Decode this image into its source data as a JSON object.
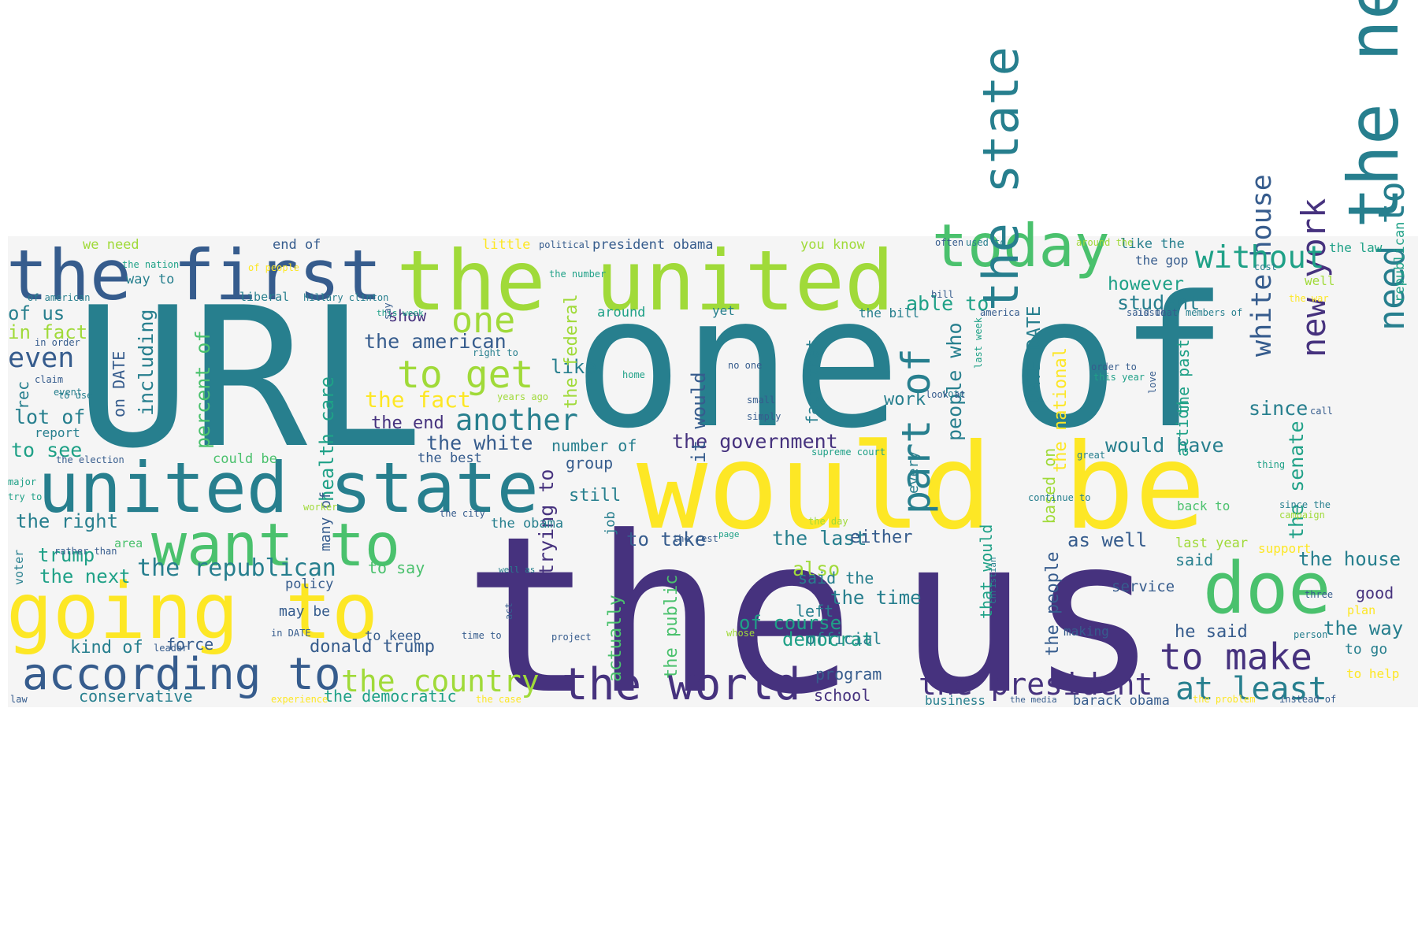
{
  "palette": [
    "#440154",
    "#46327e",
    "#365c8d",
    "#277f8e",
    "#1fa187",
    "#4ac16d",
    "#a0da39",
    "#fde725"
  ],
  "words": [
    {
      "text": "the",
      "c": 1
    },
    {
      "text": "us",
      "c": 1
    },
    {
      "text": "URL",
      "c": 3
    },
    {
      "text": "one of",
      "c": 3
    },
    {
      "text": "would be",
      "c": 7
    },
    {
      "text": "the united",
      "c": 6
    },
    {
      "text": "the first",
      "c": 2
    },
    {
      "text": "united state",
      "c": 3
    },
    {
      "text": "today",
      "c": 5
    },
    {
      "text": "the new",
      "c": 3
    },
    {
      "text": "going to",
      "c": 7
    },
    {
      "text": "want to",
      "c": 5
    },
    {
      "text": "doe",
      "c": 5
    },
    {
      "text": "according to",
      "c": 2
    },
    {
      "text": "the world",
      "c": 1
    },
    {
      "text": "the state",
      "c": 3
    },
    {
      "text": "part of",
      "c": 3
    },
    {
      "text": "to make",
      "c": 1
    },
    {
      "text": "the president",
      "c": 1
    },
    {
      "text": "at least",
      "c": 3
    },
    {
      "text": "new york",
      "c": 1
    },
    {
      "text": "white house",
      "c": 2
    },
    {
      "text": "need to",
      "c": 3
    },
    {
      "text": "the country",
      "c": 6
    },
    {
      "text": "to get",
      "c": 6
    },
    {
      "text": "another",
      "c": 3
    },
    {
      "text": "one",
      "c": 6
    },
    {
      "text": "without",
      "c": 4
    },
    {
      "text": "DATE DATE",
      "c": 3
    },
    {
      "text": "the republican",
      "c": 3
    },
    {
      "text": "the american",
      "c": 2
    },
    {
      "text": "the white",
      "c": 2
    },
    {
      "text": "the government",
      "c": 1
    },
    {
      "text": "the fact",
      "c": 7
    },
    {
      "text": "the end",
      "c": 1
    },
    {
      "text": "even",
      "c": 2
    },
    {
      "text": "of us",
      "c": 3
    },
    {
      "text": "in fact",
      "c": 6
    },
    {
      "text": "lot of",
      "c": 3
    },
    {
      "text": "to see",
      "c": 4
    },
    {
      "text": "the right",
      "c": 3
    },
    {
      "text": "trump",
      "c": 4
    },
    {
      "text": "the next",
      "c": 4
    },
    {
      "text": "kind of",
      "c": 3
    },
    {
      "text": "force",
      "c": 2
    },
    {
      "text": "donald trump",
      "c": 2
    },
    {
      "text": "conservative",
      "c": 3
    },
    {
      "text": "the democratic",
      "c": 4
    },
    {
      "text": "health care",
      "c": 4
    },
    {
      "text": "including",
      "c": 3
    },
    {
      "text": "on DATE",
      "c": 2
    },
    {
      "text": "percent of",
      "c": 5
    },
    {
      "text": "rec",
      "c": 3
    },
    {
      "text": "report",
      "c": 3
    },
    {
      "text": "like",
      "c": 3
    },
    {
      "text": "show",
      "c": 1
    },
    {
      "text": "around",
      "c": 4
    },
    {
      "text": "yet",
      "c": 3
    },
    {
      "text": "it would",
      "c": 2
    },
    {
      "text": "the federal",
      "c": 6
    },
    {
      "text": "number of",
      "c": 3
    },
    {
      "text": "group",
      "c": 2
    },
    {
      "text": "still",
      "c": 3
    },
    {
      "text": "job",
      "c": 3
    },
    {
      "text": "to take",
      "c": 2
    },
    {
      "text": "the last",
      "c": 3
    },
    {
      "text": "either",
      "c": 2
    },
    {
      "text": "trying to",
      "c": 1
    },
    {
      "text": "actually",
      "c": 5
    },
    {
      "text": "the public",
      "c": 5
    },
    {
      "text": "also",
      "c": 6
    },
    {
      "text": "said the",
      "c": 3
    },
    {
      "text": "the time",
      "c": 3
    },
    {
      "text": "of course",
      "c": 4
    },
    {
      "text": "democrat",
      "c": 4
    },
    {
      "text": "official",
      "c": 3
    },
    {
      "text": "left",
      "c": 3
    },
    {
      "text": "program",
      "c": 2
    },
    {
      "text": "school",
      "c": 1
    },
    {
      "text": "fact that",
      "c": 3
    },
    {
      "text": "work",
      "c": 3
    },
    {
      "text": "every",
      "c": 3
    },
    {
      "text": "people who",
      "c": 3
    },
    {
      "text": "that would",
      "c": 4
    },
    {
      "text": "the people",
      "c": 2
    },
    {
      "text": "based on",
      "c": 6
    },
    {
      "text": "the national",
      "c": 7
    },
    {
      "text": "able to",
      "c": 4
    },
    {
      "text": "student",
      "c": 3
    },
    {
      "text": "however",
      "c": 4
    },
    {
      "text": "would have",
      "c": 3
    },
    {
      "text": "as well",
      "c": 2
    },
    {
      "text": "the senate",
      "c": 4
    },
    {
      "text": "the past",
      "c": 4
    },
    {
      "text": "action",
      "c": 4
    },
    {
      "text": "since",
      "c": 3
    },
    {
      "text": "the house",
      "c": 3
    },
    {
      "text": "last year",
      "c": 6
    },
    {
      "text": "said",
      "c": 3
    },
    {
      "text": "service",
      "c": 2
    },
    {
      "text": "good",
      "c": 1
    },
    {
      "text": "he said",
      "c": 2
    },
    {
      "text": "the way",
      "c": 3
    },
    {
      "text": "to go",
      "c": 3
    },
    {
      "text": "making",
      "c": 2
    },
    {
      "text": "business",
      "c": 3
    },
    {
      "text": "barack obama",
      "c": 2
    },
    {
      "text": "the gop",
      "c": 2
    },
    {
      "text": "like the",
      "c": 3
    },
    {
      "text": "the law",
      "c": 4
    },
    {
      "text": "republican",
      "c": 4
    },
    {
      "text": "well",
      "c": 6
    },
    {
      "text": "back to",
      "c": 5
    },
    {
      "text": "support",
      "c": 7
    },
    {
      "text": "to help",
      "c": 7
    },
    {
      "text": "plan",
      "c": 7
    },
    {
      "text": "the bill",
      "c": 3
    },
    {
      "text": "you know",
      "c": 6
    },
    {
      "text": "president obama",
      "c": 2
    },
    {
      "text": "little",
      "c": 7
    },
    {
      "text": "end of",
      "c": 2
    },
    {
      "text": "we need",
      "c": 6
    },
    {
      "text": "way to",
      "c": 3
    },
    {
      "text": "liberal",
      "c": 3
    },
    {
      "text": "could be",
      "c": 5
    },
    {
      "text": "the best",
      "c": 2
    },
    {
      "text": "the obama",
      "c": 3
    },
    {
      "text": "to say",
      "c": 5
    },
    {
      "text": "may be",
      "c": 2
    },
    {
      "text": "policy",
      "c": 2
    },
    {
      "text": "to keep",
      "c": 2
    },
    {
      "text": "many of",
      "c": 2
    },
    {
      "text": "area",
      "c": 5
    },
    {
      "text": "voter",
      "c": 3
    },
    {
      "text": "the nation",
      "c": 4
    },
    {
      "text": "of people",
      "c": 7
    },
    {
      "text": "hillary clinton",
      "c": 3
    },
    {
      "text": "political",
      "c": 2
    },
    {
      "text": "the number",
      "c": 4
    },
    {
      "text": "often",
      "c": 2
    },
    {
      "text": "used to",
      "c": 3
    },
    {
      "text": "around the",
      "c": 6
    },
    {
      "text": "cost",
      "c": 3
    },
    {
      "text": "bill",
      "c": 2
    },
    {
      "text": "the war",
      "c": 7
    },
    {
      "text": "members of",
      "c": 3
    },
    {
      "text": "said that",
      "c": 2
    },
    {
      "text": "issue",
      "c": 2
    },
    {
      "text": "america",
      "c": 2
    },
    {
      "text": "this week",
      "c": 4
    },
    {
      "text": "say",
      "c": 2
    },
    {
      "text": "of american",
      "c": 3
    },
    {
      "text": "in order",
      "c": 2
    },
    {
      "text": "right to",
      "c": 3
    },
    {
      "text": "claim",
      "c": 2
    },
    {
      "text": "event",
      "c": 3
    },
    {
      "text": "to use",
      "c": 3
    },
    {
      "text": "years ago",
      "c": 6
    },
    {
      "text": "home",
      "c": 4
    },
    {
      "text": "no one",
      "c": 2
    },
    {
      "text": "small",
      "c": 2
    },
    {
      "text": "simply",
      "c": 2
    },
    {
      "text": "vote",
      "c": 3
    },
    {
      "text": "order to",
      "c": 2
    },
    {
      "text": "this year",
      "c": 4
    },
    {
      "text": "last week",
      "c": 4
    },
    {
      "text": "call",
      "c": 2
    },
    {
      "text": "look at",
      "c": 2
    },
    {
      "text": "the election",
      "c": 2
    },
    {
      "text": "major",
      "c": 4
    },
    {
      "text": "try to",
      "c": 4
    },
    {
      "text": "worker",
      "c": 6
    },
    {
      "text": "rather than",
      "c": 2
    },
    {
      "text": "the city",
      "c": 2
    },
    {
      "text": "supreme court",
      "c": 4
    },
    {
      "text": "the day",
      "c": 6
    },
    {
      "text": "continue to",
      "c": 3
    },
    {
      "text": "great",
      "c": 3
    },
    {
      "text": "thing",
      "c": 4
    },
    {
      "text": "love",
      "c": 2
    },
    {
      "text": "since the",
      "c": 3
    },
    {
      "text": "campaign",
      "c": 6
    },
    {
      "text": "page",
      "c": 4
    },
    {
      "text": "the rest",
      "c": 2
    },
    {
      "text": "well as",
      "c": 3
    },
    {
      "text": "act",
      "c": 2
    },
    {
      "text": "christian",
      "c": 3
    },
    {
      "text": "three",
      "c": 2
    },
    {
      "text": "whose",
      "c": 6
    },
    {
      "text": "person",
      "c": 3
    },
    {
      "text": "in DATE",
      "c": 2
    },
    {
      "text": "leader",
      "c": 2
    },
    {
      "text": "time to",
      "c": 2
    },
    {
      "text": "project",
      "c": 2
    },
    {
      "text": "law",
      "c": 2
    },
    {
      "text": "experience",
      "c": 7
    },
    {
      "text": "the case",
      "c": 7
    },
    {
      "text": "the media",
      "c": 2
    },
    {
      "text": "the problem",
      "c": 7
    },
    {
      "text": "instead of",
      "c": 2
    },
    {
      "text": "across the",
      "c": 3
    }
  ]
}
